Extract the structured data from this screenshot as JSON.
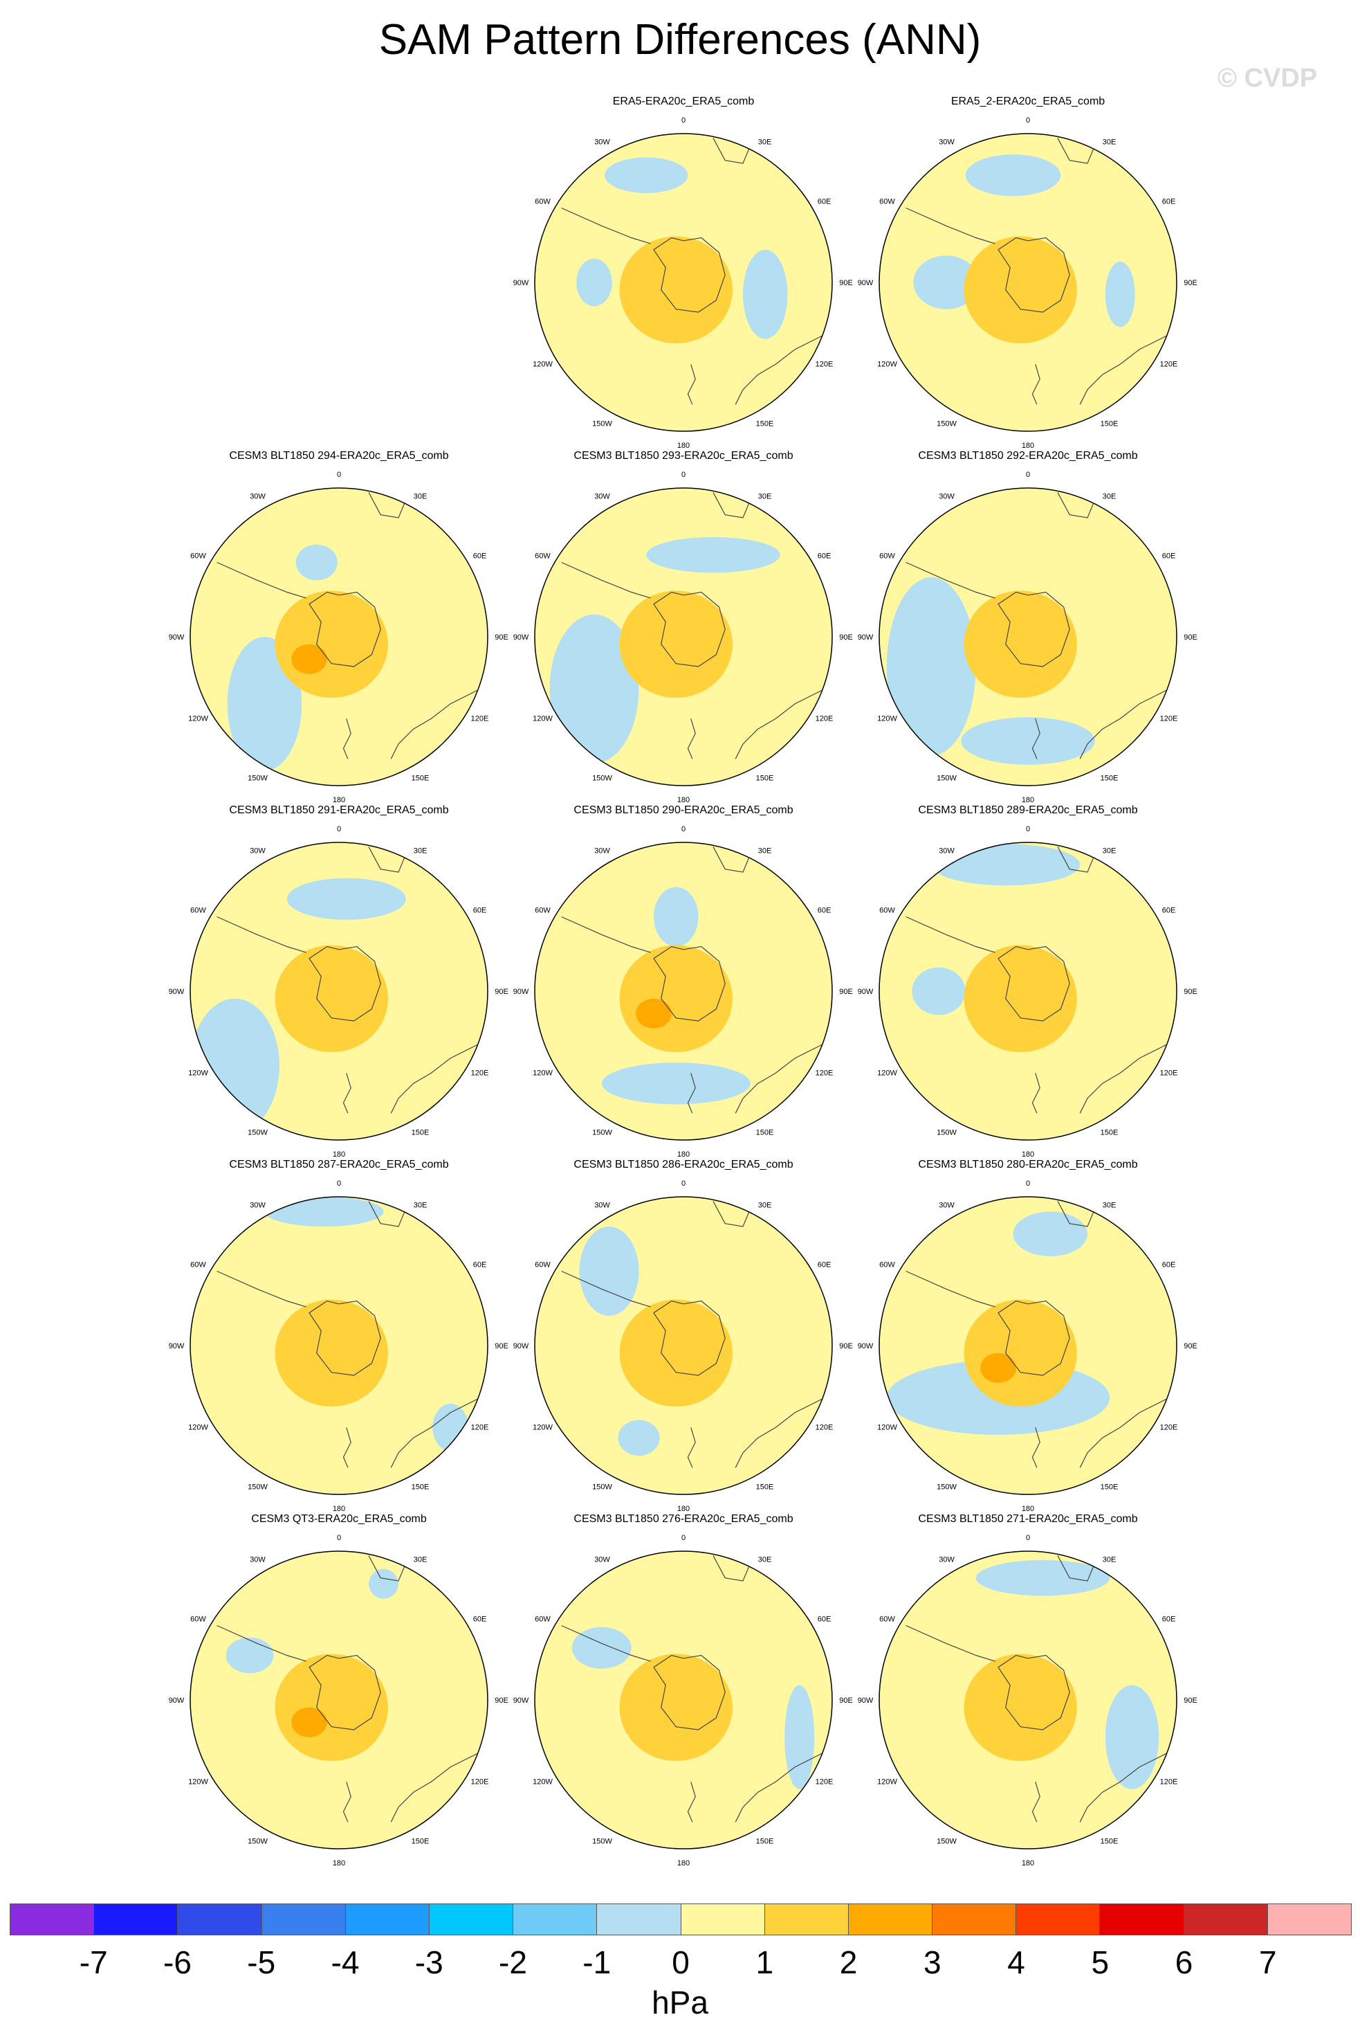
{
  "title": "SAM Pattern Differences (ANN)",
  "watermark": "© CVDP",
  "colorbar": {
    "unit": "hPa",
    "ticks": [
      "-7",
      "-6",
      "-5",
      "-4",
      "-3",
      "-2",
      "-1",
      "0",
      "1",
      "2",
      "3",
      "4",
      "5",
      "6",
      "7"
    ],
    "colors": [
      "#8a2be2",
      "#1a1aff",
      "#2f4bea",
      "#3a7ff0",
      "#1e9bff",
      "#00c8ff",
      "#6ecbf5",
      "#b4dff2",
      "#fff8a0",
      "#ffd23c",
      "#ffaa00",
      "#ff7a00",
      "#ff3c00",
      "#e60000",
      "#cc2626",
      "#ffb0b0"
    ]
  },
  "map_colors": {
    "land_line": "#444444",
    "base": "#fff8a0",
    "negative": "#b4dff2",
    "positive1": "#ffd23c",
    "positive2": "#ffaa00",
    "positive3": "#ff7a00"
  },
  "longitude_labels": [
    "0",
    "30E",
    "60E",
    "90E",
    "120E",
    "150E",
    "180",
    "150W",
    "120W",
    "90W",
    "60W",
    "30W"
  ],
  "panels": [
    {
      "title": "ERA5-ERA20c_ERA5_comb",
      "max_level": "2",
      "neg": [
        [
          -0.25,
          -0.72,
          0.28,
          0.12
        ],
        [
          -0.6,
          0.0,
          0.12,
          0.16
        ],
        [
          0.55,
          0.08,
          0.15,
          0.3
        ]
      ]
    },
    {
      "title": "ERA5_2-ERA20c_ERA5_comb",
      "max_level": "2",
      "neg": [
        [
          -0.1,
          -0.72,
          0.32,
          0.14
        ],
        [
          -0.55,
          0.0,
          0.22,
          0.18
        ],
        [
          0.62,
          0.08,
          0.1,
          0.22
        ]
      ]
    },
    {
      "title": "CESM3 BLT1850 294-ERA20c_ERA5_comb",
      "max_level": "3",
      "neg": [
        [
          -0.15,
          -0.5,
          0.14,
          0.12
        ],
        [
          -0.5,
          0.45,
          0.25,
          0.45
        ]
      ]
    },
    {
      "title": "CESM3 BLT1850 293-ERA20c_ERA5_comb",
      "max_level": "2",
      "neg": [
        [
          0.2,
          -0.55,
          0.45,
          0.12
        ],
        [
          -0.6,
          0.35,
          0.3,
          0.5
        ]
      ]
    },
    {
      "title": "CESM3 BLT1850 292-ERA20c_ERA5_comb",
      "max_level": "2",
      "neg": [
        [
          -0.65,
          0.2,
          0.3,
          0.6
        ],
        [
          0.0,
          0.7,
          0.45,
          0.16
        ]
      ]
    },
    {
      "title": "CESM3 BLT1850 291-ERA20c_ERA5_comb",
      "max_level": "2",
      "neg": [
        [
          0.05,
          -0.62,
          0.4,
          0.14
        ],
        [
          -0.7,
          0.5,
          0.3,
          0.45
        ]
      ]
    },
    {
      "title": "CESM3 BLT1850 290-ERA20c_ERA5_comb",
      "max_level": "3",
      "neg": [
        [
          -0.05,
          -0.5,
          0.15,
          0.2
        ],
        [
          -0.05,
          0.62,
          0.5,
          0.14
        ]
      ]
    },
    {
      "title": "CESM3 BLT1850 289-ERA20c_ERA5_comb",
      "max_level": "2",
      "neg": [
        [
          -0.15,
          -0.85,
          0.5,
          0.14
        ],
        [
          -0.6,
          0.0,
          0.18,
          0.16
        ]
      ]
    },
    {
      "title": "CESM3 BLT1850 287-ERA20c_ERA5_comb",
      "max_level": "2",
      "neg": [
        [
          -0.1,
          -0.9,
          0.4,
          0.1
        ],
        [
          0.75,
          0.55,
          0.12,
          0.16
        ]
      ]
    },
    {
      "title": "CESM3 BLT1850 286-ERA20c_ERA5_comb",
      "max_level": "2",
      "neg": [
        [
          -0.5,
          -0.5,
          0.2,
          0.3
        ],
        [
          -0.3,
          0.62,
          0.14,
          0.12
        ]
      ]
    },
    {
      "title": "CESM3 BLT1850 280-ERA20c_ERA5_comb",
      "max_level": "3",
      "neg": [
        [
          0.15,
          -0.75,
          0.25,
          0.15
        ],
        [
          -0.2,
          0.35,
          0.75,
          0.25
        ]
      ]
    },
    {
      "title": "CESM3 QT3-ERA20c_ERA5_comb",
      "max_level": "3",
      "neg": [
        [
          -0.6,
          -0.3,
          0.16,
          0.12
        ],
        [
          0.3,
          -0.78,
          0.1,
          0.1
        ]
      ]
    },
    {
      "title": "CESM3 BLT1850 276-ERA20c_ERA5_comb",
      "max_level": "2",
      "neg": [
        [
          -0.55,
          -0.35,
          0.2,
          0.14
        ],
        [
          0.78,
          0.25,
          0.1,
          0.35
        ]
      ]
    },
    {
      "title": "CESM3 BLT1850 271-ERA20c_ERA5_comb",
      "max_level": "2",
      "neg": [
        [
          0.1,
          -0.82,
          0.45,
          0.12
        ],
        [
          0.7,
          0.25,
          0.18,
          0.35
        ]
      ]
    }
  ]
}
